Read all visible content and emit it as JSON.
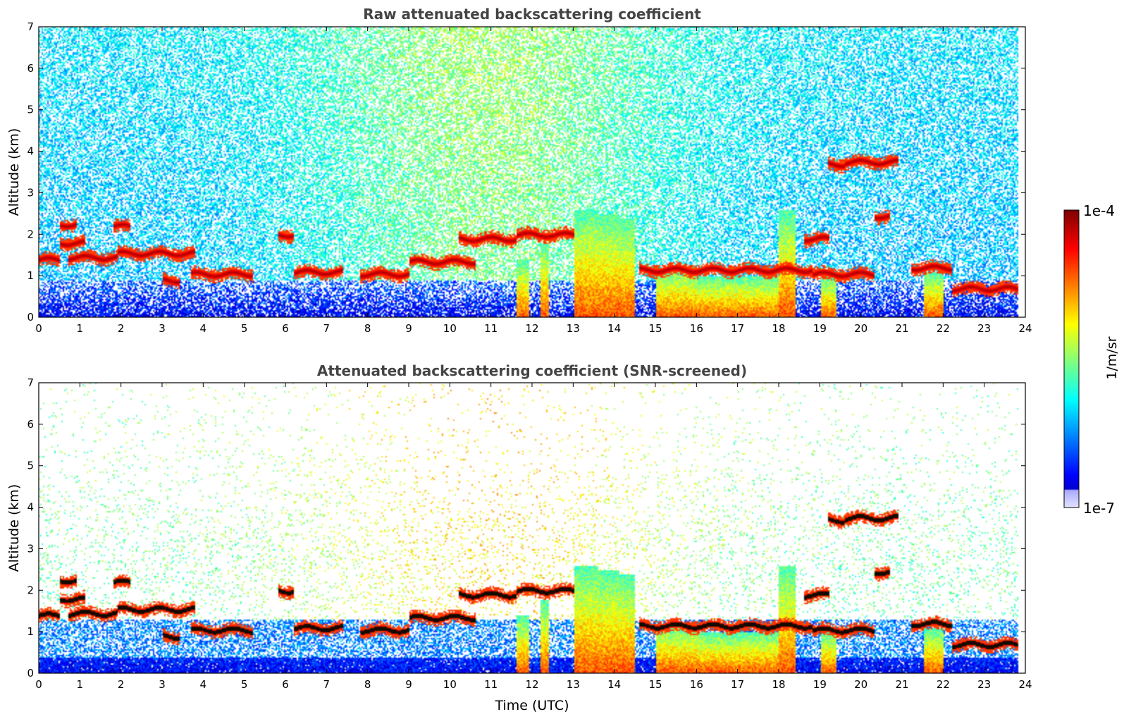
{
  "chart_data": [
    {
      "type": "heatmap",
      "title": "Raw attenuated backscattering coefficient",
      "xlabel": "",
      "ylabel": "Altitude (km)",
      "xlim": [
        0,
        24
      ],
      "ylim": [
        0,
        7
      ],
      "x_ticks": [
        "0",
        "1",
        "2",
        "3",
        "4",
        "5",
        "6",
        "7",
        "8",
        "9",
        "10",
        "11",
        "12",
        "13",
        "14",
        "15",
        "16",
        "17",
        "18",
        "19",
        "20",
        "21",
        "22",
        "23",
        "24"
      ],
      "y_ticks": [
        "0",
        "1",
        "2",
        "3",
        "4",
        "5",
        "6",
        "7"
      ],
      "data_end_time": 23.8,
      "cloud_layers": [
        {
          "t0": 0.0,
          "t1": 0.5,
          "alt": 1.4
        },
        {
          "t0": 0.5,
          "t1": 0.9,
          "alt": 2.25
        },
        {
          "t0": 0.5,
          "t1": 1.1,
          "alt": 1.8
        },
        {
          "t0": 0.7,
          "t1": 1.9,
          "alt": 1.45
        },
        {
          "t0": 1.8,
          "t1": 2.2,
          "alt": 2.2
        },
        {
          "t0": 1.9,
          "t1": 3.8,
          "alt": 1.55
        },
        {
          "t0": 3.0,
          "t1": 3.4,
          "alt": 0.9
        },
        {
          "t0": 3.7,
          "t1": 5.2,
          "alt": 1.05
        },
        {
          "t0": 5.8,
          "t1": 6.2,
          "alt": 2.0
        },
        {
          "t0": 6.2,
          "t1": 7.4,
          "alt": 1.1
        },
        {
          "t0": 7.8,
          "t1": 9.0,
          "alt": 1.05
        },
        {
          "t0": 9.0,
          "t1": 10.6,
          "alt": 1.35
        },
        {
          "t0": 10.2,
          "t1": 11.6,
          "alt": 1.9
        },
        {
          "t0": 11.6,
          "t1": 13.0,
          "alt": 2.0
        },
        {
          "t0": 14.6,
          "t1": 18.8,
          "alt": 1.15
        },
        {
          "t0": 18.8,
          "t1": 20.3,
          "alt": 1.05
        },
        {
          "t0": 19.2,
          "t1": 19.6,
          "alt": 3.7
        },
        {
          "t0": 19.6,
          "t1": 20.9,
          "alt": 3.75
        },
        {
          "t0": 20.3,
          "t1": 20.7,
          "alt": 2.45
        },
        {
          "t0": 18.6,
          "t1": 19.2,
          "alt": 1.9
        },
        {
          "t0": 21.2,
          "t1": 22.2,
          "alt": 1.2
        },
        {
          "t0": 22.2,
          "t1": 23.8,
          "alt": 0.7
        }
      ],
      "precip_shafts": [
        {
          "t0": 11.6,
          "t1": 11.9,
          "top": 1.4
        },
        {
          "t0": 12.2,
          "t1": 12.4,
          "top": 1.8
        },
        {
          "t0": 13.0,
          "t1": 13.6,
          "top": 2.6
        },
        {
          "t0": 13.6,
          "t1": 14.1,
          "top": 2.5
        },
        {
          "t0": 14.1,
          "t1": 14.5,
          "top": 2.4
        },
        {
          "t0": 15.0,
          "t1": 16.0,
          "top": 1.2
        },
        {
          "t0": 16.0,
          "t1": 18.0,
          "top": 1.0
        },
        {
          "t0": 18.0,
          "t1": 18.4,
          "top": 2.6
        },
        {
          "t0": 19.0,
          "t1": 19.4,
          "top": 1.0
        },
        {
          "t0": 21.5,
          "t1": 22.0,
          "top": 1.1
        }
      ]
    },
    {
      "type": "heatmap",
      "title": "Attenuated backscattering coefficient (SNR-screened)",
      "xlabel": "Time (UTC)",
      "ylabel": "Altitude (km)",
      "xlim": [
        0,
        24
      ],
      "ylim": [
        0,
        7
      ],
      "x_ticks": [
        "0",
        "1",
        "2",
        "3",
        "4",
        "5",
        "6",
        "7",
        "8",
        "9",
        "10",
        "11",
        "12",
        "13",
        "14",
        "15",
        "16",
        "17",
        "18",
        "19",
        "20",
        "21",
        "22",
        "23",
        "24"
      ],
      "y_ticks": [
        "0",
        "1",
        "2",
        "3",
        "4",
        "5",
        "6",
        "7"
      ],
      "data_end_time": 23.8
    }
  ],
  "colorbar": {
    "min_label": "1e-7",
    "max_label": "1e-4",
    "unit": "1/m/sr",
    "colormap": "jet"
  }
}
